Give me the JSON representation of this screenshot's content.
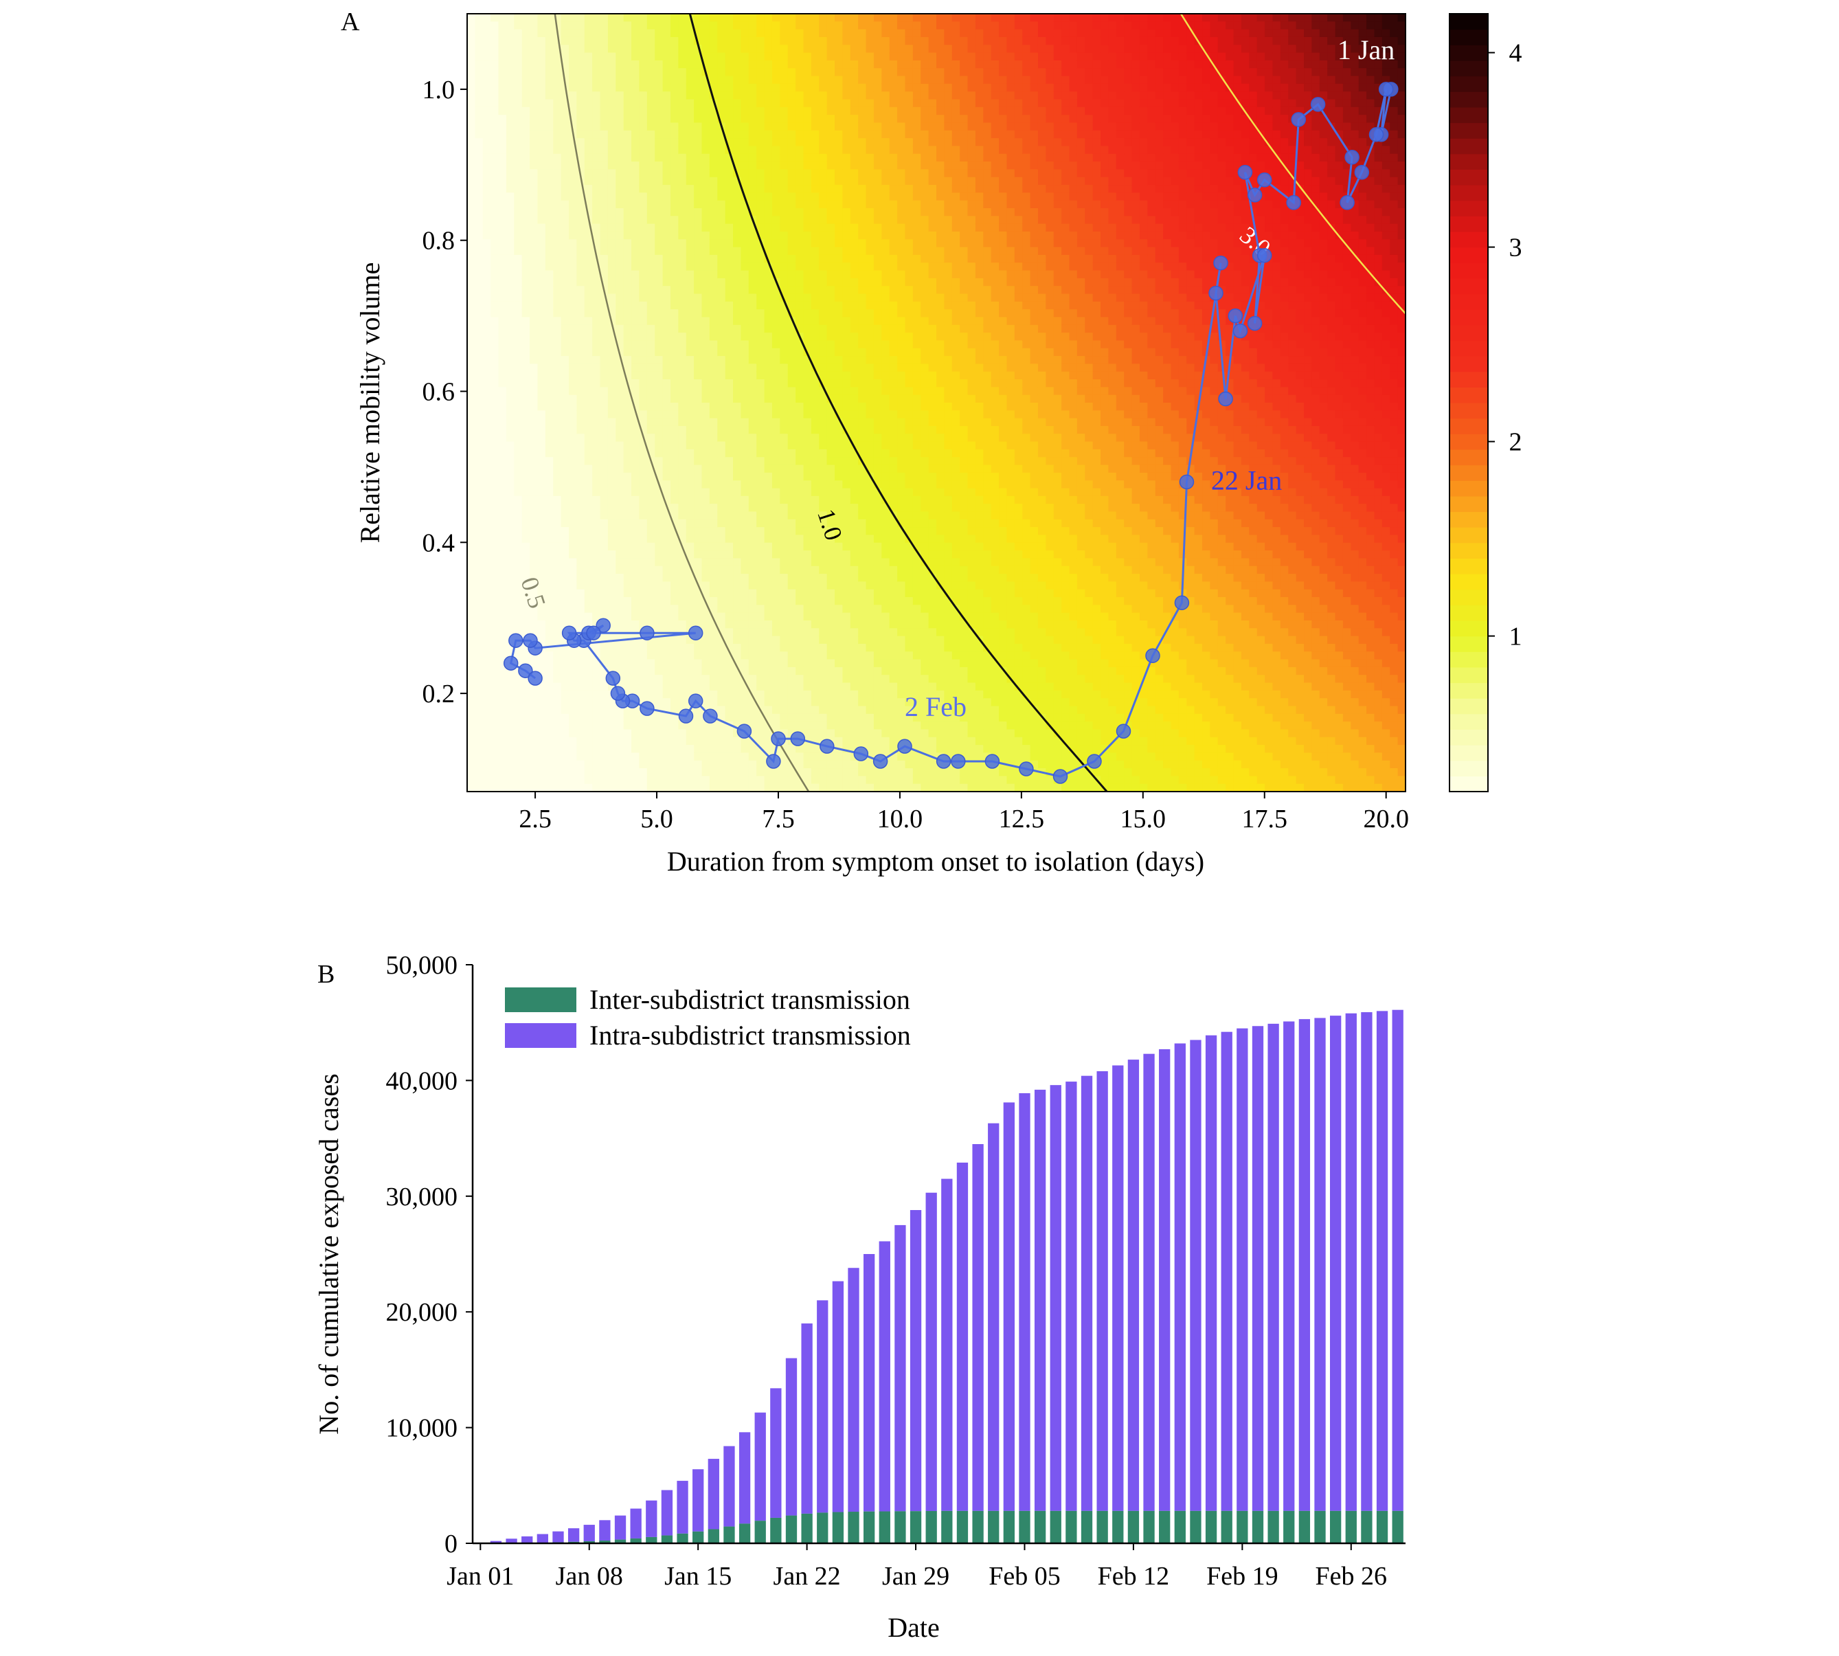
{
  "colors": {
    "inter": "#31876a",
    "intra": "#7b57f0",
    "trajectory": "#4a6fe0",
    "trajectory_label": "#3a38d8",
    "contour_dark": "#111111",
    "contour_grey": "#7d7d5a",
    "contour_yellow": "#f4e14a"
  },
  "chart_data": [
    {
      "panel": "A",
      "type": "heatmap",
      "panel_label": "A",
      "xlabel": "Duration from symptom onset to isolation (days)",
      "ylabel": "Relative mobility volume",
      "xlim": [
        1.1,
        20.4
      ],
      "ylim": [
        0.07,
        1.1
      ],
      "x_ticks": [
        2.5,
        5.0,
        7.5,
        10.0,
        12.5,
        15.0,
        17.5,
        20.0
      ],
      "x_tick_labels": [
        "2.5",
        "5.0",
        "7.5",
        "10.0",
        "12.5",
        "15.0",
        "17.5",
        "20.0"
      ],
      "y_ticks": [
        0.2,
        0.4,
        0.6,
        0.8,
        1.0
      ],
      "y_tick_labels": [
        "0.2",
        "0.4",
        "0.6",
        "0.8",
        "1.0"
      ],
      "colorbar": {
        "range": [
          0.2,
          4.2
        ],
        "ticks": [
          1,
          2,
          3,
          4
        ],
        "tick_labels": [
          "1",
          "2",
          "3",
          "4"
        ]
      },
      "contours": [
        {
          "level": 0.5,
          "label": "0.5",
          "label_at": [
            2.3,
            0.33
          ]
        },
        {
          "level": 1.0,
          "label": "1.0",
          "label_at": [
            8.4,
            0.42
          ]
        },
        {
          "level": 3.0,
          "label": "3.0",
          "label_at": [
            17.2,
            0.79
          ]
        }
      ],
      "annotations": [
        {
          "text": "1 Jan",
          "at": [
            19.0,
            1.04
          ]
        },
        {
          "text": "22 Jan",
          "at": [
            16.4,
            0.47
          ]
        },
        {
          "text": "2 Feb",
          "at": [
            10.1,
            0.17
          ]
        }
      ],
      "trajectory": {
        "x": [
          20.1,
          19.9,
          20.0,
          19.8,
          19.5,
          19.2,
          19.3,
          18.6,
          18.2,
          18.1,
          17.5,
          17.3,
          17.1,
          17.4,
          17.3,
          17.5,
          17.0,
          16.9,
          16.7,
          16.5,
          16.6,
          15.9,
          15.8,
          15.2,
          14.6,
          14.0,
          13.3,
          12.6,
          11.9,
          11.2,
          10.9,
          10.1,
          9.6,
          9.2,
          8.5,
          7.9,
          7.5,
          7.4,
          6.8,
          6.1,
          5.8,
          5.6,
          4.8,
          4.5,
          4.3,
          4.2,
          4.1,
          3.5,
          3.3,
          3.2,
          3.6,
          3.9,
          3.7,
          4.8,
          5.8,
          2.5,
          2.4,
          2.1,
          2.0,
          2.3,
          2.5
        ],
        "y": [
          1.0,
          0.94,
          1.0,
          0.94,
          0.89,
          0.85,
          0.91,
          0.98,
          0.96,
          0.85,
          0.88,
          0.86,
          0.89,
          0.78,
          0.69,
          0.78,
          0.68,
          0.7,
          0.59,
          0.73,
          0.77,
          0.48,
          0.32,
          0.25,
          0.15,
          0.11,
          0.09,
          0.1,
          0.11,
          0.11,
          0.11,
          0.13,
          0.11,
          0.12,
          0.13,
          0.14,
          0.14,
          0.11,
          0.15,
          0.17,
          0.19,
          0.17,
          0.18,
          0.19,
          0.19,
          0.2,
          0.22,
          0.27,
          0.27,
          0.28,
          0.28,
          0.29,
          0.28,
          0.28,
          0.28,
          0.26,
          0.27,
          0.27,
          0.24,
          0.23,
          0.22
        ]
      }
    },
    {
      "panel": "B",
      "type": "bar",
      "stacked": true,
      "panel_label": "B",
      "xlabel": "Date",
      "ylabel": "No. of cumulative exposed cases",
      "ylim": [
        0,
        50000
      ],
      "y_ticks": [
        0,
        10000,
        20000,
        30000,
        40000,
        50000
      ],
      "y_tick_labels": [
        "0",
        "10,000",
        "20,000",
        "30,000",
        "40,000",
        "50,000"
      ],
      "x_tick_labels": [
        "Jan 01",
        "Jan 08",
        "Jan 15",
        "Jan 22",
        "Jan 29",
        "Feb 05",
        "Feb 12",
        "Feb 19",
        "Feb 26"
      ],
      "x_tick_positions": [
        0,
        7,
        14,
        21,
        28,
        35,
        42,
        49,
        56
      ],
      "legend_position": "top-left",
      "series": [
        {
          "name": "Inter-subdistrict transmission",
          "values": [
            0,
            10,
            20,
            40,
            60,
            90,
            130,
            180,
            240,
            320,
            420,
            540,
            680,
            840,
            1020,
            1220,
            1450,
            1700,
            1950,
            2200,
            2400,
            2560,
            2650,
            2700,
            2730,
            2750,
            2760,
            2770,
            2780,
            2790,
            2800,
            2800,
            2800,
            2800,
            2800,
            2800,
            2800,
            2800,
            2800,
            2800,
            2800,
            2800,
            2800,
            2800,
            2800,
            2800,
            2800,
            2800,
            2800,
            2800,
            2800,
            2800,
            2800,
            2800,
            2800,
            2800,
            2800,
            2800,
            2800,
            2800
          ]
        },
        {
          "name": "Intra-subdistrict transmission",
          "values": [
            0,
            190,
            380,
            560,
            740,
            940,
            1170,
            1420,
            1760,
            2080,
            2580,
            3160,
            3920,
            4560,
            5380,
            6080,
            6950,
            7900,
            9350,
            11200,
            13600,
            16440,
            18350,
            19950,
            21070,
            22250,
            23340,
            24730,
            26020,
            27510,
            28700,
            30100,
            31700,
            33500,
            35300,
            36100,
            36400,
            36800,
            37100,
            37600,
            38000,
            38500,
            39000,
            39500,
            39900,
            40400,
            40700,
            41100,
            41400,
            41700,
            41900,
            42100,
            42300,
            42500,
            42600,
            42800,
            43000,
            43100,
            43200,
            43300
          ]
        }
      ]
    }
  ]
}
